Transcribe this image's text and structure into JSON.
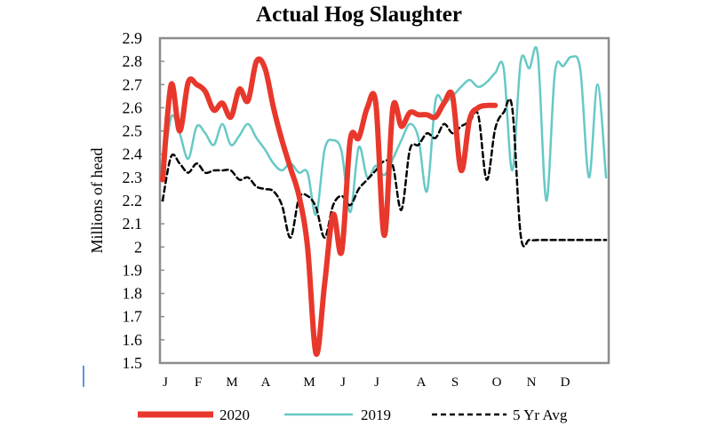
{
  "chart_data": {
    "type": "line",
    "title": "Actual Hog Slaughter",
    "ylabel": "Millions of head",
    "xlabel": "",
    "ylim": [
      1.5,
      2.9
    ],
    "yticks": [
      "1.5",
      "1.6",
      "1.7",
      "1.8",
      "1.9",
      "2",
      "2.1",
      "2.2",
      "2.3",
      "2.4",
      "2.5",
      "2.6",
      "2.7",
      "2.8",
      "2.9"
    ],
    "xlim": [
      1,
      53
    ],
    "categories": [
      "J",
      "F",
      "M",
      "A",
      "M",
      "J",
      "J",
      "A",
      "S",
      "O",
      "N",
      "D"
    ],
    "grid": false,
    "legend_position": "bottom",
    "series": [
      {
        "name": "2020",
        "color": "#e8382c",
        "style": "solid-thick",
        "x": [
          1,
          2,
          3,
          4,
          5,
          6,
          7,
          8,
          9,
          10,
          11,
          12,
          13,
          14,
          15,
          16,
          17,
          18,
          19,
          20,
          21,
          22,
          23,
          24,
          25,
          26,
          27,
          28,
          29,
          30,
          31,
          32,
          33,
          34,
          35,
          36,
          37,
          38,
          39,
          40
        ],
        "values": [
          2.29,
          2.7,
          2.5,
          2.71,
          2.7,
          2.67,
          2.59,
          2.62,
          2.56,
          2.68,
          2.63,
          2.8,
          2.77,
          2.6,
          2.46,
          2.34,
          2.22,
          2.0,
          1.54,
          1.84,
          2.14,
          1.98,
          2.46,
          2.47,
          2.6,
          2.62,
          2.05,
          2.6,
          2.52,
          2.58,
          2.57,
          2.57,
          2.56,
          2.62,
          2.65,
          2.33,
          2.55,
          2.6,
          2.61,
          2.61
        ]
      },
      {
        "name": "2019",
        "color": "#66c9c6",
        "style": "solid-thin",
        "x": [
          1,
          2,
          3,
          4,
          5,
          6,
          7,
          8,
          9,
          10,
          11,
          12,
          13,
          14,
          15,
          16,
          17,
          18,
          19,
          20,
          21,
          22,
          23,
          24,
          25,
          26,
          27,
          28,
          29,
          30,
          31,
          32,
          33,
          34,
          35,
          36,
          37,
          38,
          39,
          40,
          41,
          42,
          43,
          44,
          45,
          46,
          47,
          48,
          49,
          50,
          51,
          52,
          53
        ],
        "values": [
          2.3,
          2.56,
          2.49,
          2.38,
          2.52,
          2.49,
          2.44,
          2.53,
          2.44,
          2.48,
          2.53,
          2.47,
          2.42,
          2.36,
          2.33,
          2.36,
          2.32,
          2.32,
          2.14,
          2.42,
          2.46,
          2.41,
          2.15,
          2.43,
          2.3,
          2.35,
          2.31,
          2.38,
          2.46,
          2.53,
          2.47,
          2.24,
          2.63,
          2.62,
          2.65,
          2.69,
          2.72,
          2.69,
          2.71,
          2.75,
          2.77,
          2.33,
          2.8,
          2.77,
          2.83,
          2.2,
          2.75,
          2.78,
          2.82,
          2.76,
          2.3,
          2.7,
          2.3
        ]
      },
      {
        "name": "5 Yr Avg",
        "color": "#000000",
        "style": "dashed",
        "x": [
          1,
          2,
          3,
          4,
          5,
          6,
          7,
          8,
          9,
          10,
          11,
          12,
          13,
          14,
          15,
          16,
          17,
          18,
          19,
          20,
          21,
          22,
          23,
          24,
          25,
          26,
          27,
          28,
          29,
          30,
          31,
          32,
          33,
          34,
          35,
          36,
          37,
          38,
          39,
          40,
          41,
          42,
          43,
          44,
          45,
          46,
          47,
          48,
          49,
          50,
          51,
          52,
          53
        ],
        "values": [
          2.2,
          2.39,
          2.36,
          2.32,
          2.36,
          2.32,
          2.33,
          2.33,
          2.33,
          2.29,
          2.3,
          2.26,
          2.25,
          2.24,
          2.18,
          2.04,
          2.21,
          2.22,
          2.17,
          2.04,
          2.18,
          2.22,
          2.18,
          2.25,
          2.29,
          2.33,
          2.37,
          2.35,
          2.16,
          2.42,
          2.44,
          2.49,
          2.47,
          2.53,
          2.49,
          2.52,
          2.54,
          2.57,
          2.29,
          2.51,
          2.58,
          2.6,
          2.05,
          2.03,
          2.03,
          2.03,
          2.03,
          2.03,
          2.03,
          2.03,
          2.03,
          2.03,
          2.03
        ]
      }
    ]
  }
}
